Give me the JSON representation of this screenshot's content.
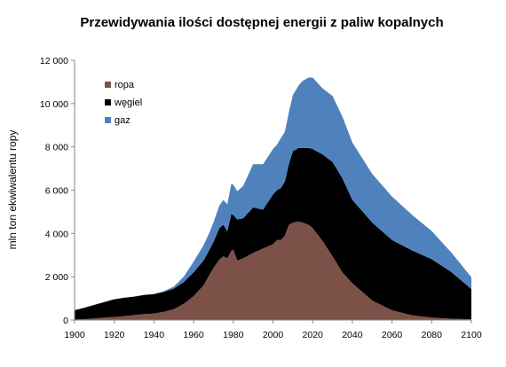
{
  "chart_data": {
    "type": "area",
    "stacked": true,
    "title": "Przewidywania ilości dostępnej energii z paliw kopalnych",
    "ylabel": "mln ton ekwiwalentu ropy",
    "xlabel": "",
    "xlim": [
      1900,
      2100
    ],
    "ylim": [
      0,
      12000
    ],
    "x_ticks": [
      1900,
      1920,
      1940,
      1960,
      1980,
      2000,
      2020,
      2040,
      2060,
      2080,
      2100
    ],
    "y_ticks": [
      0,
      2000,
      4000,
      6000,
      8000,
      10000,
      12000
    ],
    "y_tick_labels": [
      "0",
      "2 000",
      "4 000",
      "6 000",
      "8 000",
      "10 000",
      "12 000"
    ],
    "grid": false,
    "legend_position": "top-left",
    "x": [
      1900,
      1905,
      1910,
      1915,
      1920,
      1925,
      1930,
      1935,
      1940,
      1945,
      1950,
      1955,
      1960,
      1965,
      1968,
      1970,
      1973,
      1975,
      1977,
      1979,
      1980,
      1982,
      1985,
      1990,
      1995,
      2000,
      2002,
      2004,
      2006,
      2008,
      2010,
      2013,
      2015,
      2018,
      2020,
      2025,
      2030,
      2035,
      2040,
      2050,
      2060,
      2070,
      2080,
      2090,
      2100
    ],
    "series": [
      {
        "name": "ropa",
        "color": "#7b5148",
        "values": [
          20,
          40,
          70,
          110,
          140,
          180,
          230,
          280,
          300,
          380,
          500,
          750,
          1100,
          1600,
          2100,
          2400,
          2800,
          2950,
          2850,
          3200,
          3250,
          2750,
          2850,
          3100,
          3300,
          3500,
          3700,
          3700,
          3900,
          4400,
          4500,
          4550,
          4500,
          4400,
          4250,
          3650,
          2950,
          2200,
          1700,
          900,
          450,
          220,
          110,
          60,
          30
        ]
      },
      {
        "name": "węgiel",
        "color": "#000000",
        "values": [
          430,
          530,
          630,
          720,
          820,
          850,
          850,
          880,
          900,
          920,
          950,
          1000,
          1100,
          1150,
          1150,
          1200,
          1450,
          1450,
          1250,
          1700,
          1600,
          1900,
          1850,
          2100,
          1800,
          2300,
          2300,
          2400,
          2500,
          2800,
          3300,
          3400,
          3450,
          3550,
          3650,
          4000,
          4350,
          4350,
          3850,
          3600,
          3250,
          3000,
          2700,
          2150,
          1400
        ]
      },
      {
        "name": "gaz",
        "color": "#4f81bd",
        "values": [
          0,
          0,
          0,
          0,
          0,
          0,
          0,
          0,
          0,
          30,
          100,
          250,
          500,
          700,
          800,
          900,
          1050,
          1150,
          1250,
          1400,
          1400,
          1300,
          1500,
          2000,
          2100,
          2100,
          2100,
          2300,
          2300,
          2400,
          2600,
          2900,
          3100,
          3250,
          3300,
          3050,
          3050,
          2850,
          2650,
          2250,
          2000,
          1650,
          1300,
          900,
          550
        ]
      }
    ]
  }
}
